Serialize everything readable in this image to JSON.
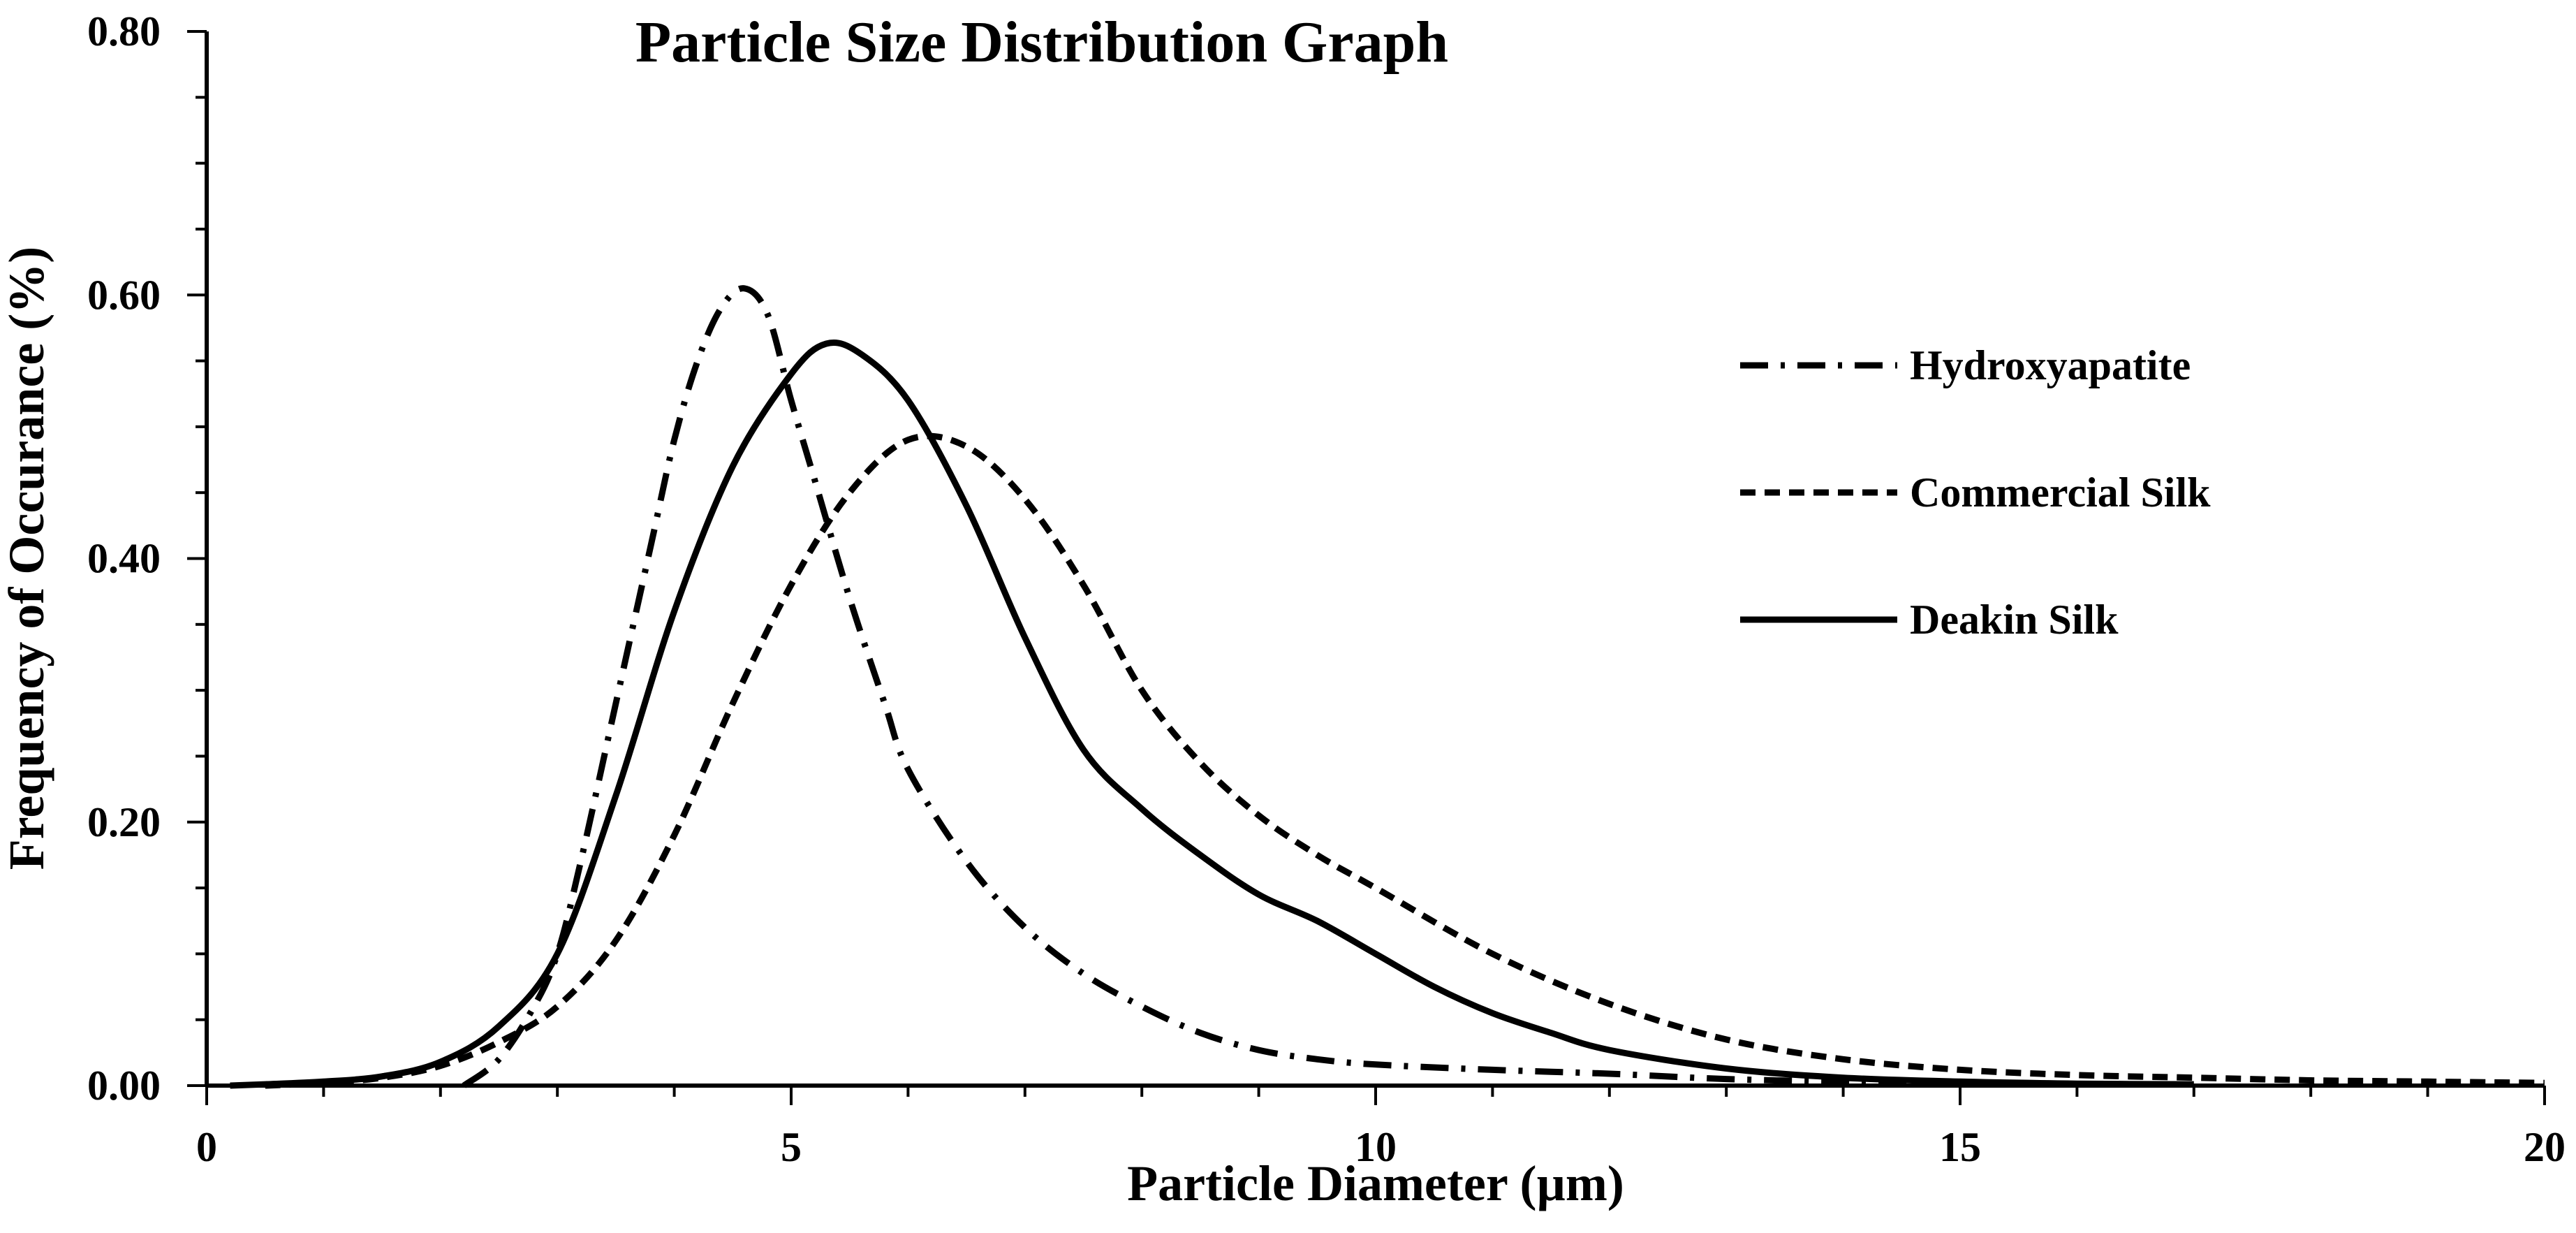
{
  "chart_data": {
    "type": "line",
    "title": "Particle Size Distribution Graph",
    "xlabel": "Particle Diameter (µm)",
    "ylabel": "Frequency of Occurance (%)",
    "xlim": [
      0,
      20
    ],
    "ylim": [
      0,
      0.8
    ],
    "x_ticks": [
      0,
      5,
      10,
      15,
      20
    ],
    "x_tick_labels": [
      "0",
      "5",
      "10",
      "15",
      "20"
    ],
    "y_ticks": [
      0,
      0.2,
      0.4,
      0.6,
      0.8
    ],
    "y_tick_labels": [
      "0.00",
      "0.20",
      "0.40",
      "0.60",
      "0.80"
    ],
    "legend_position": "top-right",
    "grid": false,
    "series": [
      {
        "name": "Hydroxyapatite",
        "style": "dashdot",
        "color": "#000000",
        "points": [
          [
            2.2,
            0.0
          ],
          [
            2.5,
            0.02
          ],
          [
            2.8,
            0.06
          ],
          [
            3.0,
            0.1
          ],
          [
            3.2,
            0.17
          ],
          [
            3.5,
            0.29
          ],
          [
            3.8,
            0.41
          ],
          [
            4.0,
            0.49
          ],
          [
            4.2,
            0.55
          ],
          [
            4.4,
            0.59
          ],
          [
            4.6,
            0.605
          ],
          [
            4.8,
            0.585
          ],
          [
            5.0,
            0.52
          ],
          [
            5.2,
            0.46
          ],
          [
            5.5,
            0.37
          ],
          [
            5.8,
            0.29
          ],
          [
            6.0,
            0.24
          ],
          [
            6.5,
            0.17
          ],
          [
            7.0,
            0.12
          ],
          [
            7.5,
            0.085
          ],
          [
            8.0,
            0.06
          ],
          [
            8.5,
            0.04
          ],
          [
            9.0,
            0.027
          ],
          [
            9.5,
            0.02
          ],
          [
            10.0,
            0.016
          ],
          [
            11.0,
            0.012
          ],
          [
            12.0,
            0.009
          ],
          [
            13.0,
            0.005
          ],
          [
            14.0,
            0.003
          ],
          [
            15.0,
            0.002
          ]
        ]
      },
      {
        "name": "Commercial Silk",
        "style": "dashed",
        "color": "#000000",
        "points": [
          [
            0.5,
            0.0
          ],
          [
            1.0,
            0.002
          ],
          [
            1.5,
            0.006
          ],
          [
            2.0,
            0.015
          ],
          [
            2.5,
            0.033
          ],
          [
            3.0,
            0.06
          ],
          [
            3.5,
            0.11
          ],
          [
            4.0,
            0.19
          ],
          [
            4.5,
            0.29
          ],
          [
            5.0,
            0.38
          ],
          [
            5.5,
            0.45
          ],
          [
            6.0,
            0.49
          ],
          [
            6.5,
            0.485
          ],
          [
            7.0,
            0.445
          ],
          [
            7.5,
            0.38
          ],
          [
            8.0,
            0.3
          ],
          [
            8.5,
            0.245
          ],
          [
            9.0,
            0.205
          ],
          [
            9.5,
            0.175
          ],
          [
            10.0,
            0.15
          ],
          [
            11.0,
            0.1
          ],
          [
            12.0,
            0.062
          ],
          [
            13.0,
            0.035
          ],
          [
            14.0,
            0.02
          ],
          [
            15.0,
            0.012
          ],
          [
            16.0,
            0.008
          ],
          [
            17.0,
            0.006
          ],
          [
            18.0,
            0.004
          ],
          [
            19.0,
            0.003
          ],
          [
            20.0,
            0.002
          ]
        ]
      },
      {
        "name": "Deakin Silk",
        "style": "solid",
        "color": "#000000",
        "points": [
          [
            0.2,
            0.0
          ],
          [
            0.5,
            0.001
          ],
          [
            1.0,
            0.003
          ],
          [
            1.5,
            0.007
          ],
          [
            2.0,
            0.018
          ],
          [
            2.5,
            0.045
          ],
          [
            3.0,
            0.1
          ],
          [
            3.5,
            0.22
          ],
          [
            4.0,
            0.36
          ],
          [
            4.5,
            0.47
          ],
          [
            5.0,
            0.54
          ],
          [
            5.3,
            0.563
          ],
          [
            5.6,
            0.555
          ],
          [
            6.0,
            0.52
          ],
          [
            6.5,
            0.44
          ],
          [
            7.0,
            0.34
          ],
          [
            7.5,
            0.255
          ],
          [
            8.0,
            0.21
          ],
          [
            8.5,
            0.175
          ],
          [
            9.0,
            0.145
          ],
          [
            9.5,
            0.125
          ],
          [
            10.0,
            0.1
          ],
          [
            10.5,
            0.075
          ],
          [
            11.0,
            0.055
          ],
          [
            11.5,
            0.04
          ],
          [
            12.0,
            0.027
          ],
          [
            13.0,
            0.013
          ],
          [
            14.0,
            0.006
          ],
          [
            15.0,
            0.003
          ],
          [
            16.0,
            0.0015
          ],
          [
            17.0,
            0.001
          ]
        ]
      }
    ]
  }
}
